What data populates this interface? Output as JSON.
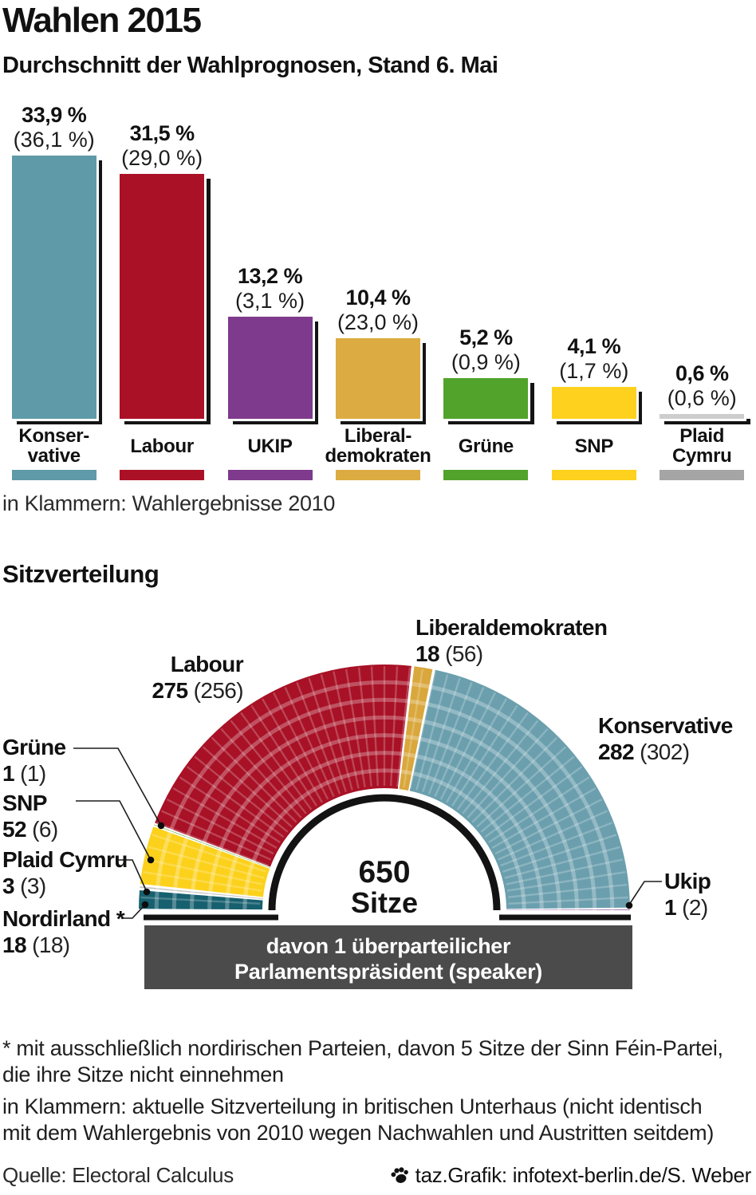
{
  "header": {
    "title": "Wahlen 2015",
    "subtitle": "Durchschnitt der Wahlprognosen, Stand 6. Mai"
  },
  "chart_data": [
    {
      "type": "bar",
      "title": "Durchschnitt der Wahlprognosen, Stand 6. Mai",
      "categories": [
        "Konservative",
        "Labour",
        "UKIP",
        "Liberaldemokraten",
        "Grüne",
        "SNP",
        "Plaid Cymru"
      ],
      "series": [
        {
          "name": "Prognose, Stand 6. Mai 2015",
          "values": [
            33.9,
            31.5,
            13.2,
            10.4,
            5.2,
            4.1,
            0.6
          ]
        },
        {
          "name": "Wahlergebnisse 2010",
          "values": [
            36.1,
            29.0,
            3.1,
            23.0,
            0.9,
            1.7,
            0.6
          ]
        }
      ],
      "unit": "%",
      "ylim": [
        0,
        36.1
      ],
      "note": "in Klammern: Wahlergebnisse 2010",
      "bars": [
        {
          "label1": "Konser-",
          "label2": "vative",
          "pct": "33,9 %",
          "prev": "(36,1 %)",
          "value": 33.9,
          "bar_color": "#5f9aa9",
          "legend_color": "#5f9aa9"
        },
        {
          "label1": "Labour",
          "label2": "",
          "pct": "31,5 %",
          "prev": "(29,0 %)",
          "value": 31.5,
          "bar_color": "#ab1126",
          "legend_color": "#ab1126"
        },
        {
          "label1": "UKIP",
          "label2": "",
          "pct": "13,2 %",
          "prev": "(3,1 %)",
          "value": 13.2,
          "bar_color": "#7e3a8c",
          "legend_color": "#7e3a8c"
        },
        {
          "label1": "Liberal-",
          "label2": "demokraten",
          "pct": "10,4 %",
          "prev": "(23,0 %)",
          "value": 10.4,
          "bar_color": "#dcab41",
          "legend_color": "#dcab41"
        },
        {
          "label1": "Grüne",
          "label2": "",
          "pct": "5,2 %",
          "prev": "(0,9 %)",
          "value": 5.2,
          "bar_color": "#52a32c",
          "legend_color": "#52a32c"
        },
        {
          "label1": "SNP",
          "label2": "",
          "pct": "4,1 %",
          "prev": "(1,7 %)",
          "value": 4.1,
          "bar_color": "#fdd11d",
          "legend_color": "#fdd11d"
        },
        {
          "label1": "Plaid",
          "label2": "Cymru",
          "pct": "0,6 %",
          "prev": "(0,6 %)",
          "value": 0.6,
          "bar_color": "#cdcdcd",
          "legend_color": "#a5a5a5"
        }
      ]
    },
    {
      "type": "parliament-half-donut",
      "title": "Sitzverteilung",
      "total_seats": 650,
      "center_label": [
        "650",
        "Sitze"
      ],
      "banner": [
        "davon 1 überparteilicher",
        "Parlamentspräsident (speaker)"
      ],
      "segments": [
        {
          "party": "Nordirland *",
          "seats": 18,
          "current": "18",
          "previous": "(18)",
          "color": "#17606f"
        },
        {
          "party": "Plaid Cymru",
          "seats": 3,
          "current": "3",
          "previous": "(3)",
          "color": "#c8c8c8"
        },
        {
          "party": "SNP",
          "seats": 52,
          "current": "52",
          "previous": "(6)",
          "color": "#fcd11c"
        },
        {
          "party": "Grüne",
          "seats": 1,
          "current": "1",
          "previous": "(1)",
          "color": "#52a32c"
        },
        {
          "party": "Labour",
          "seats": 275,
          "current": "275",
          "previous": "(256)",
          "color": "#a81126"
        },
        {
          "party": "Liberaldemokraten",
          "seats": 18,
          "current": "18",
          "previous": "(56)",
          "color": "#d9a73c"
        },
        {
          "party": "Konservative",
          "seats": 282,
          "current": "282",
          "previous": "(302)",
          "color": "#6b9fae"
        },
        {
          "party": "Ukip",
          "seats": 1,
          "current": "1",
          "previous": "(2)",
          "color": "#7e3a8c"
        }
      ]
    }
  ],
  "footnotes": {
    "fn1_line1": "* mit ausschließlich nordirischen Parteien, davon 5 Sitze der Sinn Féin-Partei,",
    "fn1_line2": "die ihre Sitze nicht einnehmen",
    "fn2_line1": "in Klammern: aktuelle Sitzverteilung in britischen Unterhaus (nicht identisch",
    "fn2_line2": "mit dem Wahlergebnis von 2010 wegen Nachwahlen und Austritten seitdem)"
  },
  "footer": {
    "source": "Quelle: Electoral Calculus",
    "credit": "taz.Grafik: infotext-berlin.de/S. Weber",
    "icon": "paw-icon"
  }
}
